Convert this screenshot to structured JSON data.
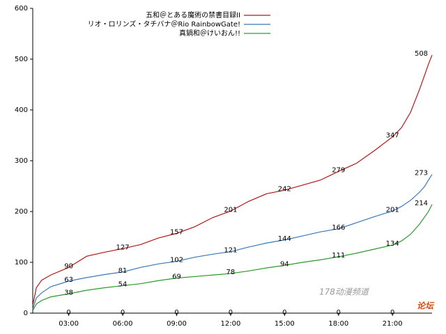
{
  "chart_data": {
    "type": "line",
    "x": [
      1,
      1.2,
      1.5,
      2,
      3,
      4,
      5,
      6,
      7,
      8,
      9,
      10,
      11,
      12,
      13,
      14,
      15,
      16,
      17,
      18,
      19,
      20,
      21,
      21.5,
      22,
      22.5,
      22.8,
      23,
      23.2
    ],
    "xlim": [
      1,
      23.2
    ],
    "xticks": [
      {
        "value": 3,
        "label": "03:00"
      },
      {
        "value": 6,
        "label": "06:00"
      },
      {
        "value": 9,
        "label": "09:00"
      },
      {
        "value": 12,
        "label": "12:00"
      },
      {
        "value": 15,
        "label": "15:00"
      },
      {
        "value": 18,
        "label": "18:00"
      },
      {
        "value": 21,
        "label": "21:00"
      }
    ],
    "ylim": [
      0,
      600
    ],
    "yticks": [
      0,
      100,
      200,
      300,
      400,
      500,
      600
    ],
    "legend": "top-right",
    "series": [
      {
        "name": "五和＠とある魔術の禁書目録II",
        "color": "#b01818",
        "values": [
          15,
          50,
          65,
          75,
          90,
          112,
          120,
          127,
          135,
          148,
          157,
          170,
          188,
          201,
          220,
          235,
          242,
          252,
          262,
          279,
          295,
          320,
          347,
          365,
          395,
          440,
          470,
          490,
          508
        ],
        "labels": [
          {
            "x": 3,
            "y": 90
          },
          {
            "x": 6,
            "y": 127
          },
          {
            "x": 9,
            "y": 157
          },
          {
            "x": 12,
            "y": 201
          },
          {
            "x": 15,
            "y": 242
          },
          {
            "x": 18,
            "y": 279
          },
          {
            "x": 21,
            "y": 347
          },
          {
            "x": 22.6,
            "y": 508
          }
        ]
      },
      {
        "name": "リオ・ロリンズ・タチバナ＠Rio RainbowGate!",
        "color": "#3a78b8",
        "values": [
          8,
          30,
          40,
          52,
          63,
          70,
          76,
          81,
          90,
          97,
          102,
          110,
          116,
          121,
          130,
          138,
          144,
          152,
          160,
          166,
          178,
          190,
          201,
          210,
          222,
          238,
          250,
          262,
          273
        ],
        "labels": [
          {
            "x": 3,
            "y": 63
          },
          {
            "x": 6,
            "y": 81
          },
          {
            "x": 9,
            "y": 102
          },
          {
            "x": 12,
            "y": 121
          },
          {
            "x": 15,
            "y": 144
          },
          {
            "x": 18,
            "y": 166
          },
          {
            "x": 21,
            "y": 201
          },
          {
            "x": 22.6,
            "y": 273
          }
        ]
      },
      {
        "name": "真鍋和＠けいおん!!",
        "color": "#2a9a2a",
        "values": [
          5,
          18,
          25,
          32,
          38,
          45,
          50,
          54,
          58,
          64,
          69,
          72,
          75,
          78,
          83,
          89,
          94,
          100,
          105,
          111,
          118,
          126,
          134,
          142,
          155,
          175,
          190,
          200,
          214
        ],
        "labels": [
          {
            "x": 3,
            "y": 38
          },
          {
            "x": 6,
            "y": 54
          },
          {
            "x": 9,
            "y": 69
          },
          {
            "x": 12,
            "y": 78
          },
          {
            "x": 15,
            "y": 94
          },
          {
            "x": 18,
            "y": 111
          },
          {
            "x": 21,
            "y": 134
          },
          {
            "x": 22.6,
            "y": 214
          }
        ]
      }
    ],
    "zero_labels": [
      {
        "x": 3,
        "y": 0
      },
      {
        "x": 6,
        "y": 0
      },
      {
        "x": 9,
        "y": 0
      },
      {
        "x": 12,
        "y": 0
      },
      {
        "x": 15,
        "y": 0
      },
      {
        "x": 18,
        "y": 0
      },
      {
        "x": 21,
        "y": 0
      }
    ]
  },
  "watermark": {
    "site": "178动漫频道",
    "forum": "论坛"
  }
}
